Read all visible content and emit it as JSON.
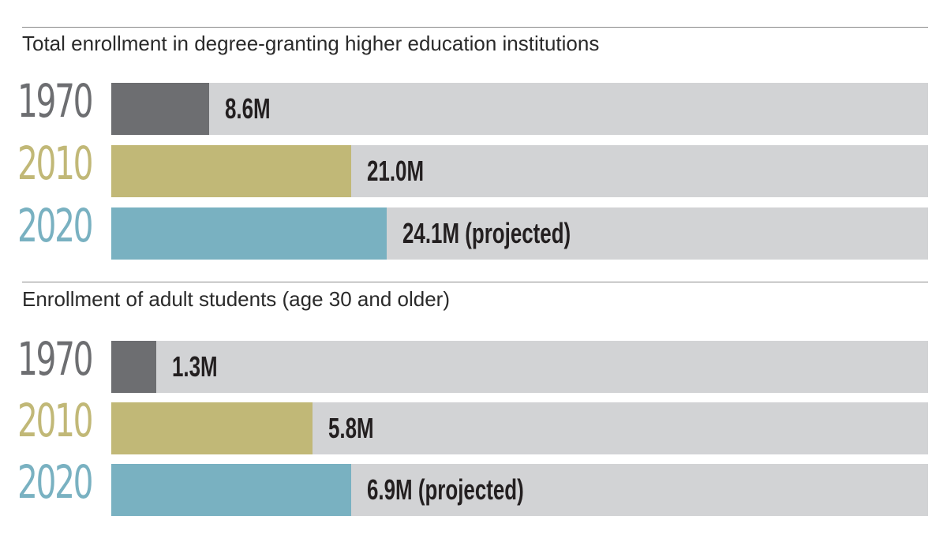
{
  "colors": {
    "1970": "#6d6e71",
    "2010": "#c1b877",
    "2020": "#79b1c1",
    "track": "#d2d3d5"
  },
  "chart_data": [
    {
      "type": "bar",
      "orientation": "horizontal",
      "title": "Total enrollment in degree-granting higher education institutions",
      "categories": [
        "1970",
        "2010",
        "2020"
      ],
      "values": [
        8.6,
        21.0,
        24.1
      ],
      "value_labels": [
        "8.6M",
        "21.0M",
        "24.1M (projected)"
      ],
      "xlim": [
        0,
        71.5
      ]
    },
    {
      "type": "bar",
      "orientation": "horizontal",
      "title": "Enrollment of adult students (age 30 and older)",
      "categories": [
        "1970",
        "2010",
        "2020"
      ],
      "values": [
        1.3,
        5.8,
        6.9
      ],
      "value_labels": [
        "1.3M",
        "5.8M",
        "6.9M (projected)"
      ],
      "xlim": [
        0,
        23.5
      ]
    }
  ]
}
